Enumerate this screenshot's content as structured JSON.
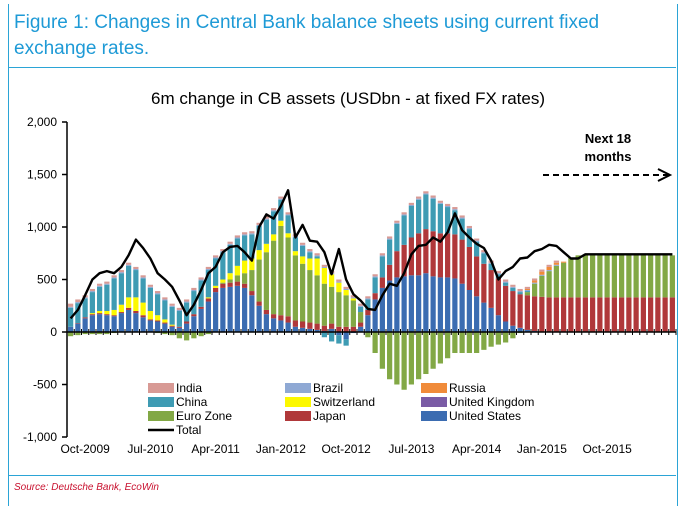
{
  "figure_title": "Figure 1: Changes in Central Bank balance sheets using current fixed exchange rates.",
  "source": "Source: Deutsche Bank, EcoWin",
  "colors": {
    "India": "#d89a95",
    "China": "#3e9bb3",
    "Euro Zone": "#82a845",
    "Brazil": "#8fa9d4",
    "Switzerland": "#fcf800",
    "Japan": "#b0383a",
    "Russia": "#f08b3a",
    "United Kingdom": "#7a5ba5",
    "United States": "#3b6cb1",
    "Total": "#000000",
    "accent": "#1e9ad6"
  },
  "chart_data": {
    "type": "bar",
    "title": "6m change in CB assets (USDbn - at fixed FX rates)",
    "xlabel": "",
    "ylabel": "",
    "ylim": [
      -1000,
      2000
    ],
    "yticks": [
      -1000,
      -500,
      0,
      500,
      1000,
      1500,
      2000
    ],
    "ytick_labels": [
      "-1,000",
      "-500",
      "0",
      "500",
      "1,000",
      "1,500",
      "2,000"
    ],
    "stacked": true,
    "x_tick_labels": [
      "Oct-2009",
      "Jul-2010",
      "Apr-2011",
      "Jan-2012",
      "Oct-2012",
      "Jul-2013",
      "Apr-2014",
      "Jan-2015",
      "Oct-2015"
    ],
    "categories": [
      "2009-08",
      "2009-09",
      "2009-10",
      "2009-11",
      "2009-12",
      "2010-01",
      "2010-02",
      "2010-03",
      "2010-04",
      "2010-05",
      "2010-06",
      "2010-07",
      "2010-08",
      "2010-09",
      "2010-10",
      "2010-11",
      "2010-12",
      "2011-01",
      "2011-02",
      "2011-03",
      "2011-04",
      "2011-05",
      "2011-06",
      "2011-07",
      "2011-08",
      "2011-09",
      "2011-10",
      "2011-11",
      "2011-12",
      "2012-01",
      "2012-02",
      "2012-03",
      "2012-04",
      "2012-05",
      "2012-06",
      "2012-07",
      "2012-08",
      "2012-09",
      "2012-10",
      "2012-11",
      "2012-12",
      "2013-01",
      "2013-02",
      "2013-03",
      "2013-04",
      "2013-05",
      "2013-06",
      "2013-07",
      "2013-08",
      "2013-09",
      "2013-10",
      "2013-11",
      "2013-12",
      "2014-01",
      "2014-02",
      "2014-03",
      "2014-04",
      "2014-05",
      "2014-06",
      "2014-07",
      "2014-08",
      "2014-09",
      "2014-10",
      "2014-11",
      "2014-12",
      "2015-01",
      "2015-02",
      "2015-03",
      "2015-04",
      "2015-05",
      "2015-06",
      "2015-07",
      "2015-08",
      "2015-09",
      "2015-10",
      "2015-11",
      "2015-12",
      "2016-01",
      "2016-02",
      "2016-03",
      "2016-04",
      "2016-05",
      "2016-06",
      "2016-07"
    ],
    "series": [
      {
        "name": "United States",
        "values": [
          50,
          80,
          130,
          160,
          170,
          160,
          150,
          180,
          210,
          180,
          140,
          110,
          100,
          80,
          50,
          40,
          80,
          150,
          220,
          290,
          380,
          420,
          430,
          440,
          420,
          350,
          250,
          170,
          130,
          110,
          90,
          50,
          40,
          30,
          20,
          10,
          30,
          -30,
          -70,
          -10,
          50,
          160,
          310,
          420,
          490,
          520,
          530,
          540,
          540,
          560,
          530,
          520,
          520,
          510,
          460,
          400,
          340,
          280,
          230,
          160,
          100,
          60,
          40,
          20,
          10,
          5,
          0,
          0,
          0,
          0,
          0,
          0,
          0,
          0,
          0,
          0,
          0,
          0,
          0,
          0,
          0,
          0,
          0,
          0
        ]
      },
      {
        "name": "Japan",
        "values": [
          0,
          5,
          10,
          10,
          10,
          10,
          10,
          10,
          20,
          20,
          20,
          10,
          10,
          10,
          10,
          10,
          20,
          20,
          20,
          30,
          40,
          40,
          40,
          40,
          40,
          40,
          40,
          40,
          40,
          50,
          60,
          60,
          60,
          60,
          60,
          50,
          50,
          50,
          50,
          50,
          40,
          50,
          60,
          100,
          150,
          250,
          300,
          360,
          400,
          420,
          430,
          420,
          420,
          420,
          420,
          410,
          380,
          370,
          360,
          350,
          340,
          330,
          320,
          330,
          330,
          330,
          330,
          330,
          330,
          330,
          330,
          330,
          330,
          330,
          330,
          330,
          330,
          330,
          330,
          330,
          330,
          330,
          330,
          330
        ]
      },
      {
        "name": "Euro Zone",
        "values": [
          -40,
          -30,
          -20,
          -20,
          -20,
          -20,
          -10,
          0,
          0,
          0,
          0,
          0,
          -10,
          -20,
          -30,
          -60,
          -80,
          -60,
          -40,
          -20,
          0,
          10,
          30,
          60,
          100,
          200,
          400,
          550,
          700,
          850,
          750,
          620,
          550,
          500,
          460,
          400,
          350,
          330,
          300,
          250,
          100,
          -50,
          -200,
          -350,
          -450,
          -500,
          -550,
          -500,
          -450,
          -400,
          -350,
          -300,
          -250,
          -200,
          -200,
          -200,
          -200,
          -170,
          -140,
          -120,
          -100,
          -60,
          -10,
          30,
          120,
          200,
          250,
          300,
          330,
          380,
          400,
          400,
          400,
          400,
          400,
          400,
          400,
          400,
          400,
          400,
          400,
          400,
          400,
          400
        ]
      },
      {
        "name": "Switzerland",
        "values": [
          0,
          0,
          0,
          10,
          20,
          30,
          50,
          70,
          100,
          130,
          120,
          80,
          50,
          30,
          10,
          0,
          0,
          0,
          0,
          10,
          20,
          30,
          60,
          90,
          120,
          110,
          90,
          80,
          60,
          50,
          40,
          40,
          70,
          110,
          160,
          150,
          120,
          90,
          50,
          20,
          0,
          0,
          0,
          0,
          0,
          0,
          0,
          0,
          0,
          0,
          0,
          0,
          0,
          0,
          0,
          0,
          0,
          0,
          0,
          0,
          0,
          0,
          0,
          0,
          0,
          0,
          0,
          0,
          0,
          0,
          0,
          0,
          0,
          0,
          0,
          0,
          0,
          0,
          0,
          0,
          0,
          0,
          0,
          0
        ]
      },
      {
        "name": "China",
        "values": [
          180,
          190,
          180,
          200,
          230,
          250,
          300,
          300,
          300,
          260,
          230,
          220,
          200,
          180,
          170,
          150,
          180,
          220,
          250,
          260,
          260,
          260,
          270,
          260,
          240,
          230,
          230,
          230,
          220,
          200,
          170,
          130,
          100,
          60,
          20,
          -50,
          -90,
          -80,
          -60,
          0,
          50,
          100,
          150,
          200,
          240,
          260,
          280,
          300,
          320,
          330,
          310,
          280,
          250,
          230,
          200,
          170,
          140,
          100,
          60,
          40,
          30,
          30,
          20,
          10,
          0,
          0,
          0,
          0,
          0,
          0,
          0,
          0,
          0,
          0,
          0,
          0,
          0,
          0,
          0,
          0,
          0,
          0,
          0,
          0
        ]
      },
      {
        "name": "Brazil",
        "values": [
          10,
          10,
          10,
          10,
          10,
          10,
          10,
          10,
          10,
          10,
          10,
          10,
          10,
          10,
          10,
          10,
          10,
          10,
          10,
          10,
          10,
          10,
          10,
          10,
          10,
          10,
          10,
          10,
          10,
          10,
          10,
          10,
          10,
          10,
          10,
          10,
          10,
          10,
          10,
          10,
          10,
          10,
          10,
          10,
          10,
          10,
          10,
          10,
          10,
          10,
          10,
          10,
          10,
          10,
          10,
          10,
          10,
          10,
          10,
          10,
          10,
          10,
          10,
          10,
          10,
          10,
          10,
          10,
          0,
          0,
          0,
          0,
          0,
          0,
          0,
          0,
          0,
          0,
          0,
          0,
          0,
          0,
          0,
          0
        ]
      },
      {
        "name": "Russia",
        "values": [
          0,
          0,
          0,
          0,
          0,
          0,
          0,
          0,
          0,
          0,
          0,
          0,
          0,
          0,
          0,
          0,
          0,
          0,
          0,
          0,
          0,
          0,
          0,
          0,
          0,
          0,
          0,
          0,
          0,
          0,
          0,
          0,
          0,
          0,
          0,
          0,
          0,
          0,
          0,
          0,
          0,
          0,
          0,
          0,
          0,
          0,
          0,
          0,
          0,
          0,
          0,
          0,
          0,
          0,
          0,
          0,
          0,
          0,
          0,
          0,
          0,
          0,
          0,
          10,
          20,
          30,
          30,
          20,
          10,
          0,
          0,
          0,
          0,
          0,
          0,
          0,
          0,
          0,
          0,
          0,
          0,
          0,
          0,
          0
        ]
      },
      {
        "name": "United Kingdom",
        "values": [
          0,
          0,
          0,
          0,
          0,
          0,
          0,
          0,
          0,
          0,
          0,
          0,
          0,
          0,
          0,
          0,
          0,
          0,
          0,
          0,
          0,
          0,
          0,
          0,
          0,
          0,
          0,
          0,
          0,
          0,
          0,
          0,
          0,
          0,
          0,
          0,
          0,
          0,
          0,
          0,
          0,
          0,
          0,
          0,
          0,
          0,
          0,
          0,
          0,
          0,
          0,
          0,
          0,
          0,
          0,
          0,
          0,
          0,
          0,
          0,
          0,
          0,
          0,
          0,
          0,
          0,
          0,
          0,
          0,
          0,
          0,
          0,
          0,
          0,
          0,
          0,
          0,
          0,
          0,
          0,
          0,
          0,
          0,
          0
        ]
      },
      {
        "name": "India",
        "values": [
          30,
          25,
          20,
          20,
          20,
          20,
          20,
          20,
          20,
          20,
          20,
          20,
          20,
          20,
          20,
          20,
          20,
          20,
          20,
          20,
          20,
          20,
          20,
          20,
          20,
          20,
          20,
          20,
          20,
          20,
          20,
          20,
          20,
          20,
          20,
          20,
          20,
          20,
          20,
          20,
          20,
          20,
          20,
          20,
          20,
          20,
          20,
          20,
          20,
          20,
          20,
          20,
          20,
          20,
          20,
          20,
          20,
          20,
          20,
          20,
          20,
          20,
          20,
          20,
          20,
          20,
          20,
          20,
          0,
          0,
          0,
          0,
          0,
          0,
          0,
          0,
          0,
          0,
          0,
          0,
          0,
          0,
          0,
          0
        ]
      },
      {
        "name": "Total",
        "type": "line",
        "values": [
          130,
          210,
          350,
          500,
          560,
          580,
          560,
          620,
          730,
          880,
          800,
          700,
          560,
          500,
          430,
          300,
          160,
          260,
          400,
          560,
          620,
          760,
          810,
          820,
          760,
          680,
          1000,
          1120,
          1080,
          1200,
          1350,
          900,
          1020,
          870,
          860,
          760,
          550,
          790,
          500,
          360,
          300,
          220,
          210,
          350,
          460,
          440,
          560,
          740,
          820,
          830,
          900,
          860,
          950,
          1130,
          970,
          900,
          840,
          800,
          680,
          500,
          580,
          620,
          700,
          710,
          770,
          790,
          830,
          820,
          760,
          700,
          700,
          740,
          740,
          740,
          740,
          740,
          740,
          740,
          740,
          740,
          740,
          740,
          740,
          740
        ]
      }
    ],
    "legend": {
      "position": "bottom-center",
      "items": [
        "India",
        "Brazil",
        "Russia",
        "China",
        "Switzerland",
        "United Kingdom",
        "Euro Zone",
        "Japan",
        "United States",
        "Total"
      ]
    },
    "annotation": {
      "text_line1": "Next 18",
      "text_line2": "months"
    }
  }
}
